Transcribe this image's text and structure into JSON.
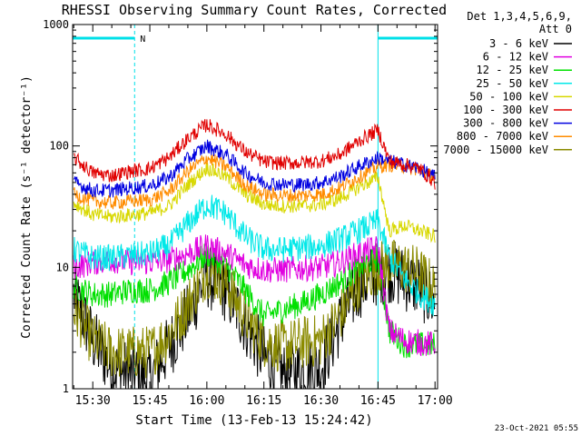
{
  "chart_data": {
    "type": "line",
    "title": "RHESSI Observing Summary Count Rates, Corrected",
    "xlabel": "Start Time (13-Feb-13 15:24:42)",
    "ylabel": "Corrected Count Rate (s⁻¹ detector⁻¹)",
    "y_scale": "log",
    "ylim": [
      1,
      1000
    ],
    "xlim": [
      "15:24:42",
      "17:00:40"
    ],
    "x_ticks": [
      "15:30",
      "15:45",
      "16:00",
      "16:15",
      "16:30",
      "16:45",
      "17:00"
    ],
    "y_ticks": [
      "1",
      "10",
      "100",
      "1000"
    ],
    "legend_header": [
      "Det 1,3,4,5,6,9,",
      "Att 0"
    ],
    "legend_position": "right",
    "timestamp": "23-Oct-2021 05:55",
    "night_marker": "N",
    "series": [
      {
        "name": "3 - 6 keV",
        "color": "#000000",
        "x": [
          "15:25",
          "15:30",
          "15:35",
          "15:40",
          "15:45",
          "15:50",
          "15:55",
          "16:00",
          "16:05",
          "16:10",
          "16:15",
          "16:20",
          "16:25",
          "16:30",
          "16:35",
          "16:40",
          "16:45",
          "16:48",
          "16:52",
          "16:56",
          "17:00"
        ],
        "y": [
          6,
          2.5,
          1.5,
          1.3,
          1.2,
          2.2,
          4,
          8.5,
          6.5,
          3.5,
          1.8,
          1.3,
          1.4,
          1.5,
          3.5,
          7,
          9,
          9.5,
          8,
          7,
          5
        ]
      },
      {
        "name": "6 - 12 keV",
        "color": "#e000e0",
        "x": [
          "15:25",
          "15:30",
          "15:35",
          "15:40",
          "15:45",
          "15:50",
          "15:55",
          "16:00",
          "16:05",
          "16:10",
          "16:15",
          "16:20",
          "16:25",
          "16:30",
          "16:35",
          "16:40",
          "16:45",
          "16:48",
          "16:52",
          "16:56",
          "17:00"
        ],
        "y": [
          10,
          11,
          11.5,
          11,
          11,
          11.5,
          13,
          15,
          13,
          10.5,
          9.5,
          9.5,
          9.8,
          10,
          11,
          13,
          14.5,
          3,
          2.5,
          2.4,
          2.3
        ]
      },
      {
        "name": "12 - 25 keV",
        "color": "#00e000",
        "x": [
          "15:25",
          "15:30",
          "15:35",
          "15:40",
          "15:45",
          "15:50",
          "15:55",
          "16:00",
          "16:05",
          "16:10",
          "16:15",
          "16:20",
          "16:25",
          "16:30",
          "16:35",
          "16:40",
          "16:45",
          "16:48",
          "16:52",
          "16:56",
          "17:00"
        ],
        "y": [
          7,
          6,
          6,
          6.5,
          6.5,
          7.5,
          9.5,
          13,
          10.5,
          6.5,
          4,
          4.5,
          5,
          6,
          7.5,
          10,
          12,
          3,
          2.3,
          2.3,
          2.3
        ]
      },
      {
        "name": "25 - 50 keV",
        "color": "#00e8e8",
        "x": [
          "15:25",
          "15:30",
          "15:35",
          "15:40",
          "15:45",
          "15:50",
          "15:55",
          "16:00",
          "16:05",
          "16:10",
          "16:15",
          "16:20",
          "16:25",
          "16:30",
          "16:35",
          "16:40",
          "16:45",
          "16:48",
          "16:52",
          "16:56",
          "17:00"
        ],
        "y": [
          14,
          12,
          12,
          12.5,
          13,
          15,
          23,
          33,
          28,
          18,
          14,
          14,
          14.5,
          15,
          17,
          20,
          24,
          12,
          8,
          6,
          5
        ]
      },
      {
        "name": "50 - 100 keV",
        "color": "#d8d800",
        "x": [
          "15:25",
          "15:30",
          "15:35",
          "15:40",
          "15:45",
          "15:50",
          "15:55",
          "16:00",
          "16:05",
          "16:10",
          "16:15",
          "16:20",
          "16:25",
          "16:30",
          "16:35",
          "16:40",
          "16:45",
          "16:48",
          "16:52",
          "16:56",
          "17:00"
        ],
        "y": [
          34,
          27,
          26,
          27,
          28,
          32,
          48,
          66,
          56,
          40,
          33,
          32,
          32,
          33,
          37,
          46,
          55,
          20,
          22,
          20,
          18
        ]
      },
      {
        "name": "100 - 300 keV",
        "color": "#e00000",
        "x": [
          "15:25",
          "15:30",
          "15:35",
          "15:40",
          "15:45",
          "15:50",
          "15:55",
          "16:00",
          "16:05",
          "16:10",
          "16:15",
          "16:20",
          "16:25",
          "16:30",
          "16:35",
          "16:40",
          "16:45",
          "16:48",
          "16:52",
          "16:56",
          "17:00"
        ],
        "y": [
          80,
          60,
          57,
          62,
          65,
          80,
          115,
          150,
          125,
          90,
          74,
          72,
          73,
          75,
          85,
          110,
          135,
          75,
          70,
          65,
          50
        ]
      },
      {
        "name": "300 - 800 keV",
        "color": "#0000e0",
        "x": [
          "15:25",
          "15:30",
          "15:35",
          "15:40",
          "15:45",
          "15:50",
          "15:55",
          "16:00",
          "16:05",
          "16:10",
          "16:15",
          "16:20",
          "16:25",
          "16:30",
          "16:35",
          "16:40",
          "16:45",
          "16:48",
          "16:52",
          "16:56",
          "17:00"
        ],
        "y": [
          50,
          43,
          43,
          45,
          47,
          55,
          78,
          100,
          85,
          60,
          50,
          48,
          48,
          50,
          56,
          68,
          80,
          75,
          70,
          65,
          55
        ]
      },
      {
        "name": "800 - 7000 keV",
        "color": "#ff8c00",
        "x": [
          "15:25",
          "15:30",
          "15:35",
          "15:40",
          "15:45",
          "15:50",
          "15:55",
          "16:00",
          "16:05",
          "16:10",
          "16:15",
          "16:20",
          "16:25",
          "16:30",
          "16:35",
          "16:40",
          "16:45",
          "16:48",
          "16:52",
          "16:56",
          "17:00"
        ],
        "y": [
          40,
          35,
          34,
          35,
          36,
          42,
          62,
          80,
          68,
          48,
          40,
          39,
          39,
          40,
          45,
          56,
          68,
          70,
          68,
          63,
          55
        ]
      },
      {
        "name": "7000 - 15000 keV",
        "color": "#8b8b00",
        "x": [
          "15:25",
          "15:30",
          "15:35",
          "15:40",
          "15:45",
          "15:50",
          "15:55",
          "16:00",
          "16:05",
          "16:10",
          "16:15",
          "16:20",
          "16:25",
          "16:30",
          "16:35",
          "16:40",
          "16:45",
          "16:48",
          "16:52",
          "16:56",
          "17:00"
        ],
        "y": [
          4.5,
          2.5,
          2,
          2,
          2,
          2.8,
          5,
          9.5,
          7.5,
          4,
          2.5,
          2.2,
          2.4,
          2.5,
          4,
          7.5,
          10,
          10.5,
          10,
          9,
          6.5
        ]
      }
    ],
    "attenuator_intervals": [
      [
        "15:24:42",
        "15:41:00"
      ],
      [
        "16:45:00",
        "17:00:40"
      ]
    ]
  }
}
